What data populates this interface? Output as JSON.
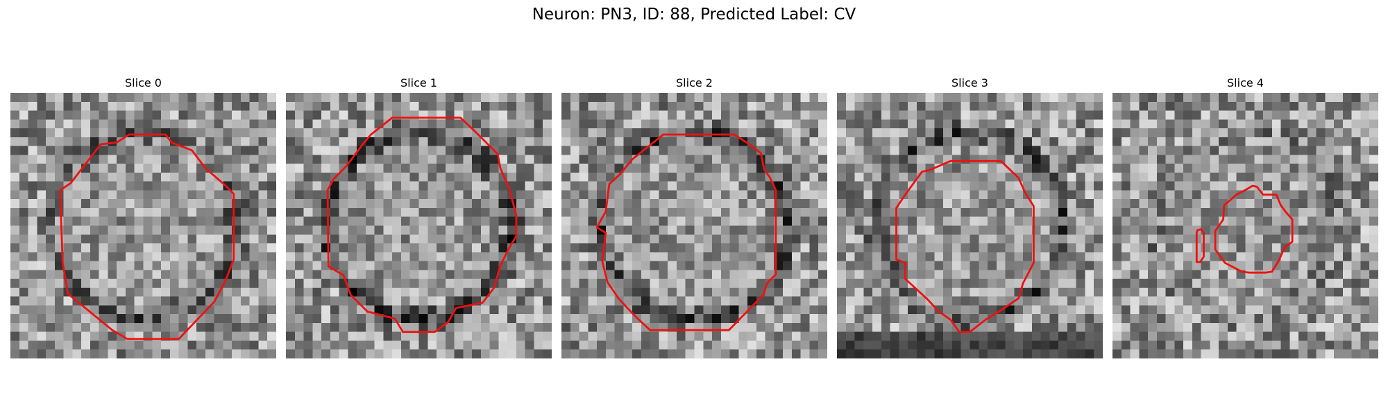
{
  "figure": {
    "title": "Neuron: PN3, ID: 88, Predicted Label: CV",
    "colors": {
      "contour": "#ee1111",
      "background": "#ffffff"
    },
    "panels": [
      {
        "title": "Slice 0",
        "seed": 11,
        "ring": 0.75,
        "darkBottom": 0
      },
      {
        "title": "Slice 1",
        "seed": 23,
        "ring": 0.95,
        "darkBottom": 0
      },
      {
        "title": "Slice 2",
        "seed": 37,
        "ring": 0.85,
        "darkBottom": 0
      },
      {
        "title": "Slice 3",
        "seed": 51,
        "ring": 0.8,
        "darkBottom": 1
      },
      {
        "title": "Slice 4",
        "seed": 67,
        "ring": 0.25,
        "darkBottom": 0
      }
    ]
  }
}
